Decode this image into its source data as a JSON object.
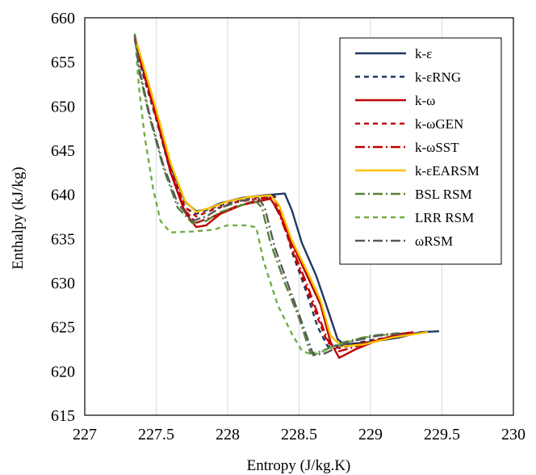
{
  "chart_data": {
    "type": "line",
    "title": "",
    "xlabel": "Entropy (J/kg.K)",
    "ylabel": "Enthalpy (kJ/kg)",
    "xlim": [
      227,
      230
    ],
    "ylim": [
      615,
      660
    ],
    "xticks": [
      227,
      227.5,
      228,
      228.5,
      229,
      229.5,
      230
    ],
    "yticks": [
      615,
      620,
      625,
      630,
      635,
      640,
      645,
      650,
      655,
      660
    ],
    "xtick_labels": [
      "227",
      "227.5",
      "228",
      "228.5",
      "229",
      "229.5",
      "230"
    ],
    "ytick_labels": [
      "615",
      "620",
      "625",
      "630",
      "635",
      "640",
      "645",
      "650",
      "655",
      "660"
    ],
    "grid": "vertical",
    "legend_position": "top-right",
    "series": [
      {
        "name": "k-ε",
        "color": "#1f3864",
        "dash": "solid",
        "points": [
          [
            227.35,
            657.8
          ],
          [
            227.4,
            654.5
          ],
          [
            227.5,
            649.2
          ],
          [
            227.6,
            643.2
          ],
          [
            227.7,
            639.2
          ],
          [
            227.78,
            638.1
          ],
          [
            227.85,
            638.3
          ],
          [
            227.95,
            639.0
          ],
          [
            228.1,
            639.6
          ],
          [
            228.25,
            639.9
          ],
          [
            228.4,
            640.1
          ],
          [
            228.45,
            638.2
          ],
          [
            228.52,
            634.5
          ],
          [
            228.62,
            630.8
          ],
          [
            228.7,
            627.0
          ],
          [
            228.77,
            623.6
          ],
          [
            228.82,
            623.0
          ],
          [
            229.0,
            623.3
          ],
          [
            229.2,
            623.8
          ],
          [
            229.35,
            624.4
          ],
          [
            229.48,
            624.5
          ]
        ]
      },
      {
        "name": "k-εRNG",
        "color": "#1f3864",
        "dash": "6,5",
        "points": [
          [
            227.35,
            657.5
          ],
          [
            227.4,
            654.0
          ],
          [
            227.5,
            648.5
          ],
          [
            227.6,
            642.5
          ],
          [
            227.7,
            638.5
          ],
          [
            227.78,
            637.8
          ],
          [
            227.9,
            638.5
          ],
          [
            228.05,
            639.3
          ],
          [
            228.2,
            639.7
          ],
          [
            228.33,
            639.8
          ],
          [
            228.38,
            637.5
          ],
          [
            228.45,
            633.5
          ],
          [
            228.55,
            629.0
          ],
          [
            228.63,
            625.0
          ],
          [
            228.7,
            622.8
          ],
          [
            228.85,
            623.0
          ],
          [
            229.0,
            623.5
          ],
          [
            229.2,
            624.0
          ],
          [
            229.32,
            624.3
          ]
        ]
      },
      {
        "name": "k-ω",
        "color": "#c00000",
        "dash": "solid",
        "points": [
          [
            227.35,
            658.0
          ],
          [
            227.4,
            655.0
          ],
          [
            227.5,
            649.0
          ],
          [
            227.6,
            642.5
          ],
          [
            227.7,
            638.0
          ],
          [
            227.78,
            636.3
          ],
          [
            227.85,
            636.5
          ],
          [
            227.95,
            637.8
          ],
          [
            228.1,
            638.8
          ],
          [
            228.3,
            639.5
          ],
          [
            228.36,
            638.0
          ],
          [
            228.45,
            634.5
          ],
          [
            228.55,
            631.0
          ],
          [
            228.65,
            627.5
          ],
          [
            228.72,
            623.3
          ],
          [
            228.78,
            621.5
          ],
          [
            228.9,
            622.5
          ],
          [
            229.05,
            623.5
          ],
          [
            229.2,
            624.2
          ],
          [
            229.3,
            624.4
          ]
        ]
      },
      {
        "name": "k-ωGEN",
        "color": "#c00000",
        "dash": "6,5",
        "points": [
          [
            227.35,
            657.6
          ],
          [
            227.4,
            654.3
          ],
          [
            227.5,
            648.8
          ],
          [
            227.6,
            642.8
          ],
          [
            227.7,
            638.6
          ],
          [
            227.78,
            637.5
          ],
          [
            227.9,
            638.3
          ],
          [
            228.05,
            639.1
          ],
          [
            228.2,
            639.5
          ],
          [
            228.32,
            639.7
          ],
          [
            228.38,
            637.5
          ],
          [
            228.46,
            633.3
          ],
          [
            228.55,
            629.5
          ],
          [
            228.63,
            626.0
          ],
          [
            228.7,
            623.2
          ],
          [
            228.78,
            622.6
          ],
          [
            228.95,
            623.2
          ],
          [
            229.15,
            623.9
          ],
          [
            229.3,
            624.3
          ]
        ]
      },
      {
        "name": "k-ωSST",
        "color": "#c00000",
        "dash": "12,4,2,4",
        "points": [
          [
            227.35,
            657.7
          ],
          [
            227.4,
            654.4
          ],
          [
            227.5,
            648.7
          ],
          [
            227.6,
            642.6
          ],
          [
            227.7,
            638.2
          ],
          [
            227.78,
            636.8
          ],
          [
            227.9,
            637.5
          ],
          [
            228.05,
            638.6
          ],
          [
            228.2,
            639.3
          ],
          [
            228.3,
            639.6
          ],
          [
            228.36,
            637.8
          ],
          [
            228.45,
            634.0
          ],
          [
            228.55,
            630.0
          ],
          [
            228.63,
            626.5
          ],
          [
            228.7,
            623.5
          ],
          [
            228.77,
            622.2
          ],
          [
            228.95,
            623.0
          ],
          [
            229.15,
            623.8
          ],
          [
            229.3,
            624.3
          ]
        ]
      },
      {
        "name": "k-εEARSM",
        "color": "#ffc000",
        "dash": "solid",
        "points": [
          [
            227.35,
            657.9
          ],
          [
            227.4,
            655.2
          ],
          [
            227.5,
            649.6
          ],
          [
            227.6,
            643.6
          ],
          [
            227.7,
            639.3
          ],
          [
            227.78,
            638.0
          ],
          [
            227.88,
            638.5
          ],
          [
            228.0,
            639.2
          ],
          [
            228.15,
            639.7
          ],
          [
            228.3,
            639.9
          ],
          [
            228.36,
            638.8
          ],
          [
            228.45,
            634.8
          ],
          [
            228.55,
            631.5
          ],
          [
            228.65,
            628.0
          ],
          [
            228.72,
            624.0
          ],
          [
            228.8,
            622.8
          ],
          [
            228.95,
            623.0
          ],
          [
            229.15,
            623.8
          ],
          [
            229.4,
            624.4
          ]
        ]
      },
      {
        "name": "BSL RSM",
        "color": "#548235",
        "dash": "12,4,2,4",
        "points": [
          [
            227.35,
            658.2
          ],
          [
            227.38,
            654.0
          ],
          [
            227.45,
            649.0
          ],
          [
            227.55,
            643.0
          ],
          [
            227.65,
            638.5
          ],
          [
            227.75,
            636.8
          ],
          [
            227.85,
            637.0
          ],
          [
            227.95,
            638.0
          ],
          [
            228.1,
            638.8
          ],
          [
            228.2,
            639.2
          ],
          [
            228.24,
            638.5
          ],
          [
            228.3,
            634.5
          ],
          [
            228.4,
            630.0
          ],
          [
            228.5,
            626.0
          ],
          [
            228.58,
            622.0
          ],
          [
            228.65,
            622.2
          ],
          [
            228.8,
            623.2
          ],
          [
            229.0,
            624.0
          ],
          [
            229.2,
            624.3
          ]
        ]
      },
      {
        "name": "LRR RSM",
        "color": "#70ad47",
        "dash": "6,5",
        "points": [
          [
            227.35,
            658.1
          ],
          [
            227.38,
            652.0
          ],
          [
            227.42,
            646.5
          ],
          [
            227.48,
            640.5
          ],
          [
            227.53,
            637.0
          ],
          [
            227.6,
            635.7
          ],
          [
            227.75,
            635.8
          ],
          [
            227.9,
            636.0
          ],
          [
            228.0,
            636.5
          ],
          [
            228.12,
            636.5
          ],
          [
            228.2,
            636.3
          ],
          [
            228.25,
            632.5
          ],
          [
            228.35,
            627.5
          ],
          [
            228.45,
            624.2
          ],
          [
            228.52,
            622.3
          ],
          [
            228.6,
            621.8
          ],
          [
            228.75,
            622.8
          ],
          [
            228.95,
            623.8
          ],
          [
            229.15,
            624.2
          ]
        ]
      },
      {
        "name": "ωRSM",
        "color": "#595959",
        "dash": "12,4,2,4",
        "points": [
          [
            227.35,
            658.0
          ],
          [
            227.38,
            654.3
          ],
          [
            227.45,
            649.3
          ],
          [
            227.55,
            643.3
          ],
          [
            227.65,
            639.0
          ],
          [
            227.75,
            637.0
          ],
          [
            227.85,
            637.5
          ],
          [
            227.95,
            638.5
          ],
          [
            228.1,
            639.3
          ],
          [
            228.22,
            639.5
          ],
          [
            228.26,
            638.5
          ],
          [
            228.33,
            634.0
          ],
          [
            228.43,
            629.5
          ],
          [
            228.52,
            625.5
          ],
          [
            228.6,
            621.8
          ],
          [
            228.68,
            622.0
          ],
          [
            228.85,
            623.3
          ],
          [
            229.05,
            624.0
          ],
          [
            229.25,
            624.3
          ]
        ]
      }
    ]
  }
}
